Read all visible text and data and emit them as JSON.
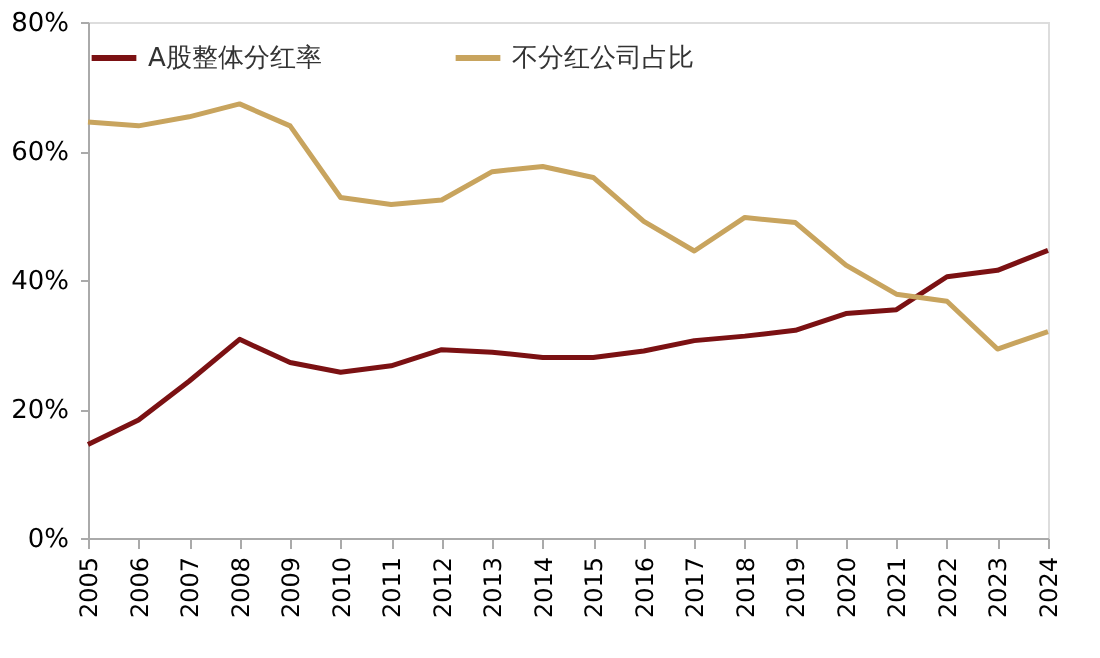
{
  "chart_data": {
    "type": "line",
    "categories": [
      "2005",
      "2006",
      "2007",
      "2008",
      "2009",
      "2010",
      "2011",
      "2012",
      "2013",
      "2014",
      "2015",
      "2016",
      "2017",
      "2018",
      "2019",
      "2020",
      "2021",
      "2022",
      "2023",
      "2024"
    ],
    "series": [
      {
        "name": "A股整体分红率",
        "color": "#7b1113",
        "values": [
          14.5,
          18.3,
          24.3,
          30.8,
          27.2,
          25.7,
          26.7,
          29.2,
          28.8,
          28.0,
          28.0,
          29.0,
          30.6,
          31.3,
          32.2,
          34.8,
          35.4,
          40.5,
          41.5,
          44.6
        ]
      },
      {
        "name": "不分红公司占比",
        "color": "#c8a45e",
        "values": [
          64.5,
          63.9,
          65.3,
          67.3,
          63.9,
          52.8,
          51.7,
          52.4,
          56.8,
          57.6,
          55.9,
          49.1,
          44.5,
          49.7,
          48.9,
          42.3,
          37.8,
          36.7,
          29.3,
          32.0
        ]
      }
    ],
    "ylim": [
      0,
      80
    ],
    "yticks": [
      {
        "value": 0,
        "label": "0%"
      },
      {
        "value": 20,
        "label": "20%"
      },
      {
        "value": 40,
        "label": "40%"
      },
      {
        "value": 60,
        "label": "60%"
      },
      {
        "value": 80,
        "label": "80%"
      }
    ],
    "legend": "top",
    "grid": false,
    "marker": "none",
    "line_style": "solid"
  }
}
